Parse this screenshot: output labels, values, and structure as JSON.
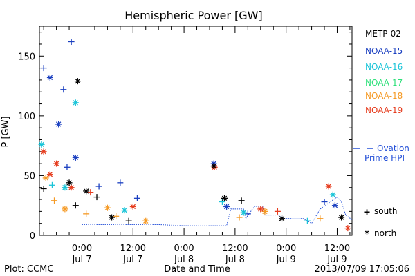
{
  "chart_data": {
    "type": "scatter",
    "title": "Hemispheric Power [GW]",
    "ylabel": "P [GW]",
    "xlabel": "Date and Time",
    "ylim": [
      0,
      175
    ],
    "xlim": [
      "2013-07-06T14:00",
      "2013-07-09T15:30"
    ],
    "yticks": [
      0,
      50,
      100,
      150
    ],
    "xticks": [
      {
        "t": "2013-07-07T00:00",
        "line1": "0:00",
        "line2": "Jul 7"
      },
      {
        "t": "2013-07-07T12:00",
        "line1": "12:00",
        "line2": "Jul 7"
      },
      {
        "t": "2013-07-08T00:00",
        "line1": "0:00",
        "line2": "Jul 8"
      },
      {
        "t": "2013-07-08T12:00",
        "line1": "12:00",
        "line2": "Jul 8"
      },
      {
        "t": "2013-07-09T00:00",
        "line1": "0:00",
        "line2": "Jul 9"
      },
      {
        "t": "2013-07-09T12:00",
        "line1": "12:00",
        "line2": "Jul 9"
      }
    ],
    "legend": {
      "position": "right",
      "series": [
        {
          "name": "METP-02",
          "color": "#000000"
        },
        {
          "name": "NOAA-15",
          "color": "#1a3fc0"
        },
        {
          "name": "NOAA-16",
          "color": "#19c4d8"
        },
        {
          "name": "NOAA-17",
          "color": "#2ee07a"
        },
        {
          "name": "NOAA-18",
          "color": "#f59a25"
        },
        {
          "name": "NOAA-19",
          "color": "#e63c1e"
        }
      ],
      "ovation_label_line1": "Ovation",
      "ovation_label_line2": "Prime HPI",
      "ovation_color": "#2450d8",
      "south_label": "south",
      "north_label": "north",
      "plus_symbol": "+",
      "star_symbol": "*"
    },
    "series": [
      {
        "name": "NOAA-15",
        "color": "#1a3fc0",
        "points": [
          {
            "t": "2013-07-06T15:00",
            "v": 140,
            "m": "plus"
          },
          {
            "t": "2013-07-06T16:30",
            "v": 132,
            "m": "star"
          },
          {
            "t": "2013-07-06T18:30",
            "v": 93,
            "m": "star"
          },
          {
            "t": "2013-07-06T19:40",
            "v": 122,
            "m": "plus"
          },
          {
            "t": "2013-07-06T21:30",
            "v": 162,
            "m": "plus"
          },
          {
            "t": "2013-07-06T22:30",
            "v": 65,
            "m": "star"
          },
          {
            "t": "2013-07-06T20:30",
            "v": 57,
            "m": "plus"
          },
          {
            "t": "2013-07-07T04:00",
            "v": 41,
            "m": "plus"
          },
          {
            "t": "2013-07-07T09:00",
            "v": 44,
            "m": "plus"
          },
          {
            "t": "2013-07-07T13:00",
            "v": 31,
            "m": "plus"
          },
          {
            "t": "2013-07-08T07:00",
            "v": 60,
            "m": "star"
          },
          {
            "t": "2013-07-08T10:00",
            "v": 24,
            "m": "star"
          },
          {
            "t": "2013-07-08T15:00",
            "v": 18,
            "m": "plus"
          },
          {
            "t": "2013-07-09T09:00",
            "v": 28,
            "m": "plus"
          },
          {
            "t": "2013-07-09T11:30",
            "v": 25,
            "m": "star"
          }
        ]
      },
      {
        "name": "NOAA-16",
        "color": "#19c4d8",
        "points": [
          {
            "t": "2013-07-06T14:30",
            "v": 76,
            "m": "star"
          },
          {
            "t": "2013-07-06T22:30",
            "v": 111,
            "m": "star"
          },
          {
            "t": "2013-07-06T17:00",
            "v": 42,
            "m": "plus"
          },
          {
            "t": "2013-07-06T20:00",
            "v": 40,
            "m": "star"
          },
          {
            "t": "2013-07-07T10:00",
            "v": 21,
            "m": "star"
          },
          {
            "t": "2013-07-08T09:00",
            "v": 28,
            "m": "plus"
          },
          {
            "t": "2013-07-08T14:00",
            "v": 19,
            "m": "star"
          },
          {
            "t": "2013-07-09T11:00",
            "v": 34,
            "m": "star"
          },
          {
            "t": "2013-07-09T05:00",
            "v": 12,
            "m": "plus"
          }
        ]
      },
      {
        "name": "NOAA-18",
        "color": "#f59a25",
        "points": [
          {
            "t": "2013-07-06T15:30",
            "v": 48,
            "m": "star"
          },
          {
            "t": "2013-07-06T17:30",
            "v": 29,
            "m": "plus"
          },
          {
            "t": "2013-07-06T20:00",
            "v": 22,
            "m": "star"
          },
          {
            "t": "2013-07-07T01:00",
            "v": 18,
            "m": "plus"
          },
          {
            "t": "2013-07-07T06:00",
            "v": 23,
            "m": "star"
          },
          {
            "t": "2013-07-07T08:00",
            "v": 16,
            "m": "plus"
          },
          {
            "t": "2013-07-07T15:00",
            "v": 12,
            "m": "star"
          },
          {
            "t": "2013-07-08T13:00",
            "v": 15,
            "m": "plus"
          },
          {
            "t": "2013-07-08T19:00",
            "v": 20,
            "m": "star"
          },
          {
            "t": "2013-07-09T08:00",
            "v": 14,
            "m": "plus"
          }
        ]
      },
      {
        "name": "NOAA-19",
        "color": "#e63c1e",
        "points": [
          {
            "t": "2013-07-06T15:00",
            "v": 70,
            "m": "star"
          },
          {
            "t": "2013-07-06T18:00",
            "v": 60,
            "m": "star"
          },
          {
            "t": "2013-07-06T16:30",
            "v": 51,
            "m": "star"
          },
          {
            "t": "2013-07-06T21:30",
            "v": 40,
            "m": "star"
          },
          {
            "t": "2013-07-07T02:00",
            "v": 36,
            "m": "plus"
          },
          {
            "t": "2013-07-07T12:00",
            "v": 24,
            "m": "star"
          },
          {
            "t": "2013-07-08T07:10",
            "v": 57,
            "m": "star"
          },
          {
            "t": "2013-07-08T18:00",
            "v": 22,
            "m": "star"
          },
          {
            "t": "2013-07-08T22:00",
            "v": 20,
            "m": "plus"
          },
          {
            "t": "2013-07-09T10:00",
            "v": 41,
            "m": "star"
          },
          {
            "t": "2013-07-09T14:30",
            "v": 6,
            "m": "star"
          }
        ]
      },
      {
        "name": "METP-02",
        "color": "#000000",
        "points": [
          {
            "t": "2013-07-06T15:00",
            "v": 39,
            "m": "plus"
          },
          {
            "t": "2013-07-06T23:00",
            "v": 129,
            "m": "star"
          },
          {
            "t": "2013-07-06T21:00",
            "v": 44,
            "m": "star"
          },
          {
            "t": "2013-07-06T22:30",
            "v": 25,
            "m": "plus"
          },
          {
            "t": "2013-07-07T01:00",
            "v": 37,
            "m": "star"
          },
          {
            "t": "2013-07-07T03:30",
            "v": 32,
            "m": "plus"
          },
          {
            "t": "2013-07-07T07:00",
            "v": 15,
            "m": "star"
          },
          {
            "t": "2013-07-07T11:00",
            "v": 12,
            "m": "plus"
          },
          {
            "t": "2013-07-08T07:00",
            "v": 58,
            "m": "star"
          },
          {
            "t": "2013-07-08T09:30",
            "v": 31,
            "m": "star"
          },
          {
            "t": "2013-07-08T13:30",
            "v": 29,
            "m": "plus"
          },
          {
            "t": "2013-07-08T23:00",
            "v": 14,
            "m": "star"
          },
          {
            "t": "2013-07-09T13:00",
            "v": 15,
            "m": "star"
          }
        ]
      }
    ],
    "ovation": [
      {
        "t": "2013-07-07T00:00",
        "v": 9
      },
      {
        "t": "2013-07-07T18:00",
        "v": 9
      },
      {
        "t": "2013-07-08T00:00",
        "v": 8
      },
      {
        "t": "2013-07-08T10:00",
        "v": 8
      },
      {
        "t": "2013-07-08T11:00",
        "v": 22
      },
      {
        "t": "2013-07-08T14:00",
        "v": 22
      },
      {
        "t": "2013-07-08T14:30",
        "v": 14
      },
      {
        "t": "2013-07-08T16:30",
        "v": 24
      },
      {
        "t": "2013-07-08T18:30",
        "v": 24
      },
      {
        "t": "2013-07-08T19:00",
        "v": 17
      },
      {
        "t": "2013-07-08T22:00",
        "v": 17
      },
      {
        "t": "2013-07-08T23:30",
        "v": 14
      },
      {
        "t": "2013-07-09T04:00",
        "v": 14
      },
      {
        "t": "2013-07-09T06:00",
        "v": 10
      },
      {
        "t": "2013-07-09T08:00",
        "v": 22
      },
      {
        "t": "2013-07-09T10:00",
        "v": 27
      },
      {
        "t": "2013-07-09T12:00",
        "v": 32
      },
      {
        "t": "2013-07-09T13:00",
        "v": 28
      },
      {
        "t": "2013-07-09T14:00",
        "v": 17
      },
      {
        "t": "2013-07-09T15:30",
        "v": 13
      }
    ]
  },
  "footer": {
    "left": "Plot: CCMC",
    "center": "Date and Time",
    "right": "2013/07/09 17:05:06"
  }
}
